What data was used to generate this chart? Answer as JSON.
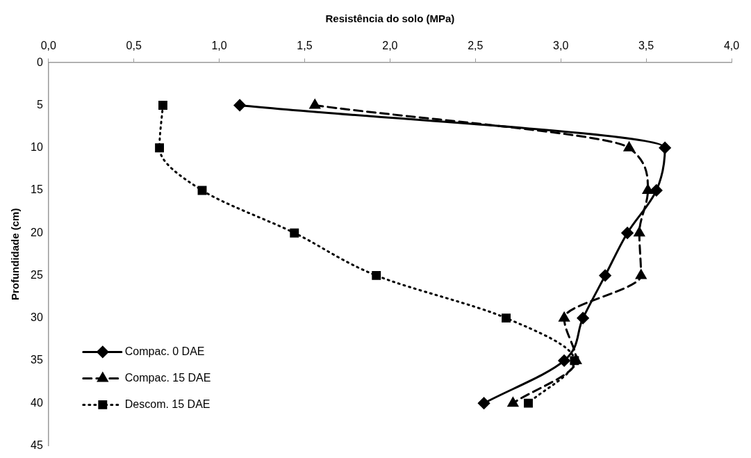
{
  "chart_data": {
    "type": "line",
    "xlabel": "Resistência do solo (MPa)",
    "ylabel": "Profundidade (cm)",
    "xlim": [
      0,
      4
    ],
    "xticks": [
      {
        "value": 0,
        "label": "0,0"
      },
      {
        "value": 0.5,
        "label": "0,5"
      },
      {
        "value": 1,
        "label": "1,0"
      },
      {
        "value": 1.5,
        "label": "1,5"
      },
      {
        "value": 2,
        "label": "2,0"
      },
      {
        "value": 2.5,
        "label": "2,5"
      },
      {
        "value": 3,
        "label": "3,0"
      },
      {
        "value": 3.5,
        "label": "3,5"
      },
      {
        "value": 4,
        "label": "4,0"
      }
    ],
    "ylim": [
      45,
      0
    ],
    "yticks": [
      0,
      5,
      10,
      15,
      20,
      25,
      30,
      35,
      40,
      45
    ],
    "grid": false,
    "legend": "bottom left",
    "series": [
      {
        "name": "Compac. 0 DAE",
        "color": "#000000",
        "marker": "diamond",
        "line_style": "solid",
        "x": [
          1.12,
          3.61,
          3.56,
          3.39,
          3.26,
          3.13,
          3.02,
          2.55
        ],
        "values": [
          5,
          10,
          15,
          20,
          25,
          30,
          35,
          40
        ]
      },
      {
        "name": "Compac. 15 DAE",
        "color": "#000000",
        "marker": "triangle",
        "line_style": "dashed",
        "x": [
          1.56,
          3.4,
          3.51,
          3.46,
          3.47,
          3.02,
          3.09,
          2.72
        ],
        "values": [
          5,
          10,
          15,
          20,
          25,
          30,
          35,
          40
        ]
      },
      {
        "name": "Descom. 15 DAE",
        "color": "#000000",
        "marker": "square",
        "line_style": "dotted",
        "x": [
          0.67,
          0.65,
          0.9,
          1.44,
          1.92,
          2.68,
          3.08,
          2.81
        ],
        "values": [
          5,
          10,
          15,
          20,
          25,
          30,
          35,
          40
        ]
      }
    ]
  }
}
